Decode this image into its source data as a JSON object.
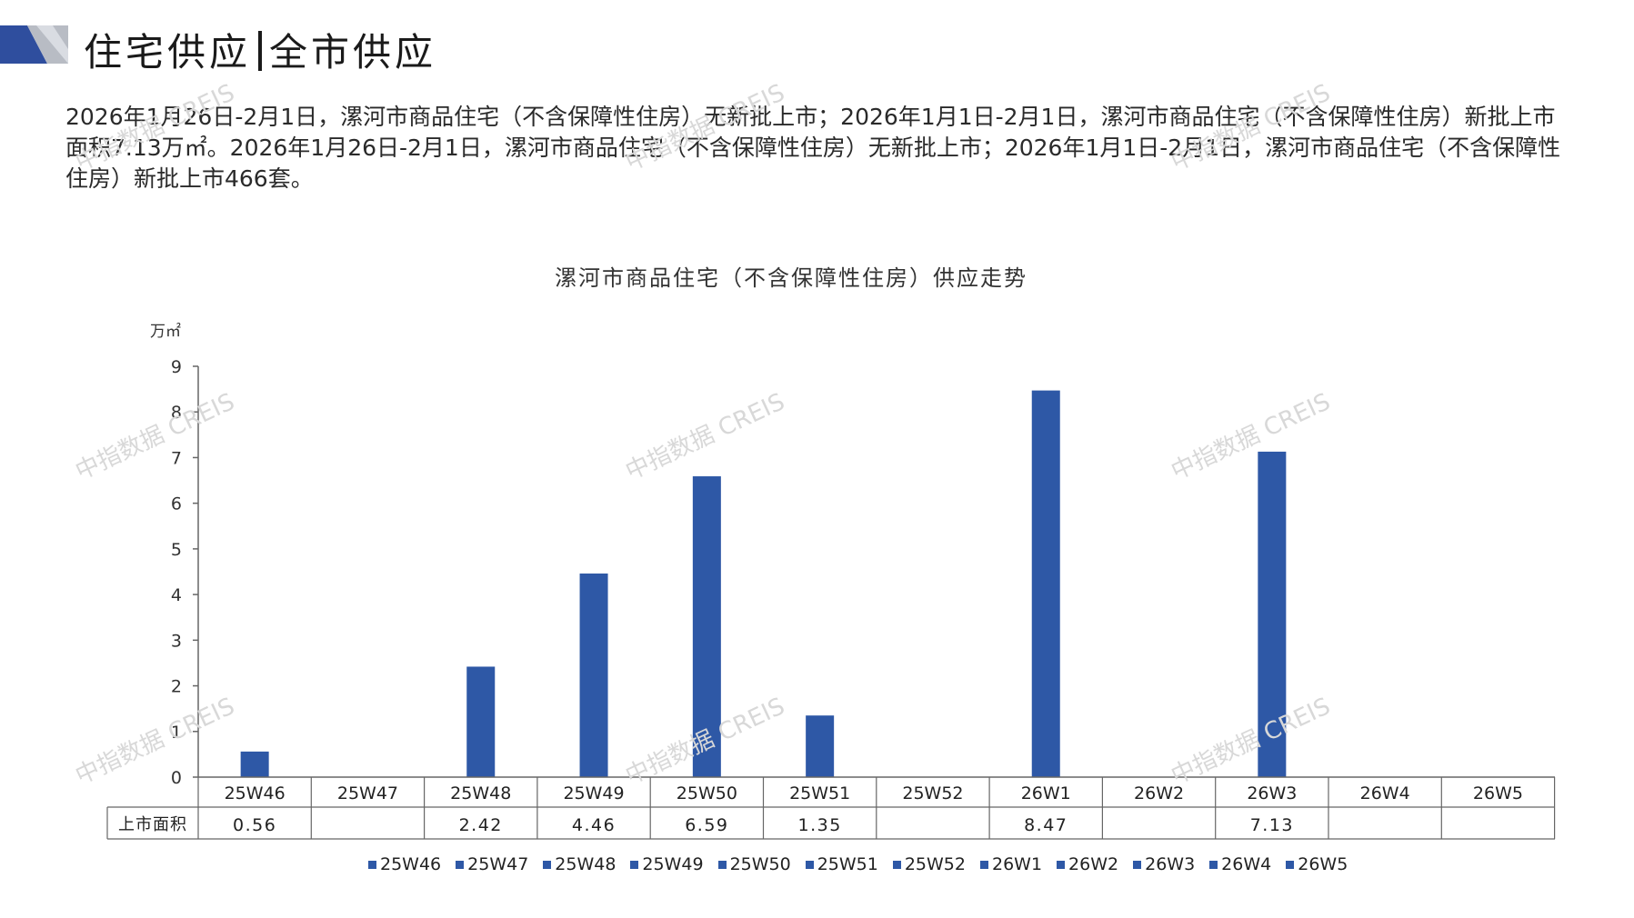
{
  "header": {
    "title_left": "住宅供应",
    "title_right": "全市供应",
    "colors": {
      "deco_blue": "#2f4e9e",
      "deco_grey": "#b8bcc4"
    }
  },
  "summary": {
    "text": "2026年1月26日-2月1日，漯河市商品住宅（不含保障性住房）无新批上市；2026年1月1日-2月1日，漯河市商品住宅（不含保障性住房）新批上市面积7.13万㎡。2026年1月26日-2月1日，漯河市商品住宅（不含保障性住房）无新批上市；2026年1月1日-2月1日，漯河市商品住宅（不含保障性住房）新批上市466套。"
  },
  "watermark": {
    "text": "中指数据 CREIS"
  },
  "chart_data": {
    "type": "bar",
    "title": "漯河市商品住宅（不含保障性住房）供应走势",
    "unit": "万㎡",
    "categories": [
      "25W46",
      "25W47",
      "25W48",
      "25W49",
      "25W50",
      "25W51",
      "25W52",
      "26W1",
      "26W2",
      "26W3",
      "26W4",
      "26W5"
    ],
    "series": [
      {
        "name": "上市面积",
        "values": [
          0.56,
          null,
          2.42,
          4.46,
          6.59,
          1.35,
          null,
          8.47,
          null,
          7.13,
          null,
          null
        ]
      }
    ],
    "value_labels": [
      "0.56",
      "",
      "2.42",
      "4.46",
      "6.59",
      "1.35",
      "",
      "8.47",
      "",
      "7.13",
      "",
      ""
    ],
    "ylim": [
      0,
      9
    ],
    "yticks": [
      0,
      1,
      2,
      3,
      4,
      5,
      6,
      7,
      8,
      9
    ],
    "data_table": true,
    "legend": {
      "position": "bottom",
      "entries": [
        "25W46",
        "25W47",
        "25W48",
        "25W49",
        "25W50",
        "25W51",
        "25W52",
        "26W1",
        "26W2",
        "26W3",
        "26W4",
        "26W5"
      ]
    },
    "grid": false,
    "color": "#2e58a6"
  }
}
